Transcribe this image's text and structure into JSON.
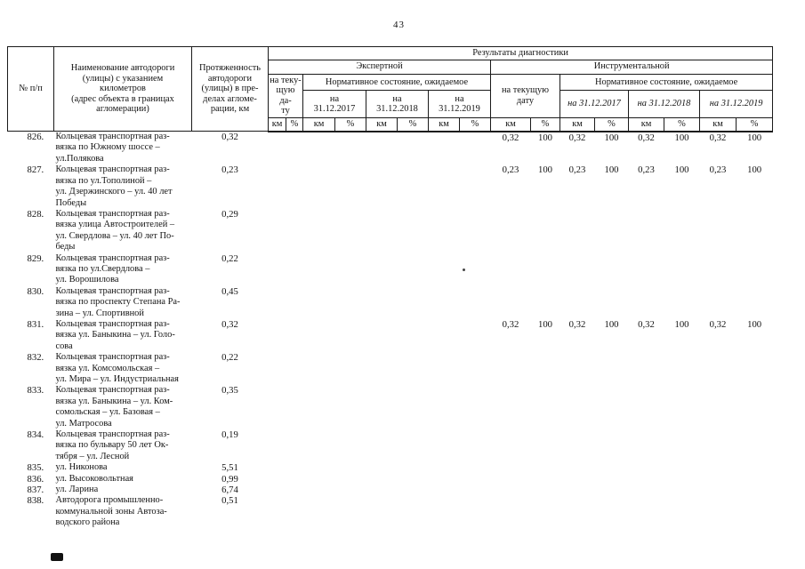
{
  "page": {
    "number": "43"
  },
  "table": {
    "headers": {
      "num": "№ п/п",
      "name": "Наименование автодороги\n(улицы) с указанием\nкилометров\n(адрес объекта в границах\nагломерации)",
      "length": "Протяженность\nавтодороги\n(улицы) в пре-\nделах агломе-\nрации, км",
      "results": "Результаты диагностики",
      "expert": "Экспертной",
      "instrumental": "Инструментальной",
      "expert_current": "на теку-\nщую да-\nту",
      "instr_current": "на текущую\nдату",
      "normative": "Нормативное состояние, ожидаемое",
      "e_d2017": "на\n31.12.2017",
      "e_d2018": "на\n31.12.2018",
      "e_d2019": "на\n31.12.2019",
      "i_d2017": "на 31.12.2017",
      "i_d2018": "на 31.12.2018",
      "i_d2019": "на 31.12.2019",
      "km": "км",
      "pct": "%"
    },
    "rows": [
      {
        "num": "826.",
        "name": "Кольцевая транспортная раз-\nвязка по Южному шоссе –\nул.Полякова",
        "length": "0,32",
        "instr": [
          "0,32",
          "100",
          "0,32",
          "100",
          "0,32",
          "100",
          "0,32",
          "100"
        ]
      },
      {
        "num": "827.",
        "name": "Кольцевая транспортная раз-\nвязка по ул.Тополиной –\nул. Дзержинского – ул. 40 лет\nПобеды",
        "length": "0,23",
        "instr": [
          "0,23",
          "100",
          "0,23",
          "100",
          "0,23",
          "100",
          "0,23",
          "100"
        ]
      },
      {
        "num": "828.",
        "name": "Кольцевая транспортная раз-\nвязка улица Автостроителей –\nул. Свердлова – ул. 40 лет По-\nбеды",
        "length": "0,29"
      },
      {
        "num": "829.",
        "name": "Кольцевая транспортная раз-\nвязка по ул.Свердлова –\nул. Ворошилова",
        "length": "0,22"
      },
      {
        "num": "830.",
        "name": "Кольцевая транспортная раз-\nвязка по проспекту Степана Ра-\nзина – ул. Спортивной",
        "length": "0,45"
      },
      {
        "num": "831.",
        "name": "Кольцевая транспортная раз-\nвязка ул. Баныкина – ул. Голо-\nсова",
        "length": "0,32",
        "instr": [
          "0,32",
          "100",
          "0,32",
          "100",
          "0,32",
          "100",
          "0,32",
          "100"
        ]
      },
      {
        "num": "832.",
        "name": "Кольцевая транспортная раз-\nвязка ул. Комсомольская –\nул. Мира – ул. Индустриальная",
        "length": "0,22"
      },
      {
        "num": "833.",
        "name": "Кольцевая транспортная раз-\nвязка ул. Баныкина – ул. Ком-\nсомольская – ул. Базовая –\nул. Матросова",
        "length": "0,35"
      },
      {
        "num": "834.",
        "name": "Кольцевая транспортная раз-\nвязка по бульвару 50 лет Ок-\nтября – ул. Лесной",
        "length": "0,19"
      },
      {
        "num": "835.",
        "name": "ул. Никонова",
        "length": "5,51"
      },
      {
        "num": "836.",
        "name": "ул. Высоковольтная",
        "length": "0,99"
      },
      {
        "num": "837.",
        "name": "ул. Ларина",
        "length": "6,74"
      },
      {
        "num": "838.",
        "name": "Автодорога промышленно-\nкоммунальной зоны Автоза-\nводского района",
        "length": "0,51"
      }
    ]
  }
}
